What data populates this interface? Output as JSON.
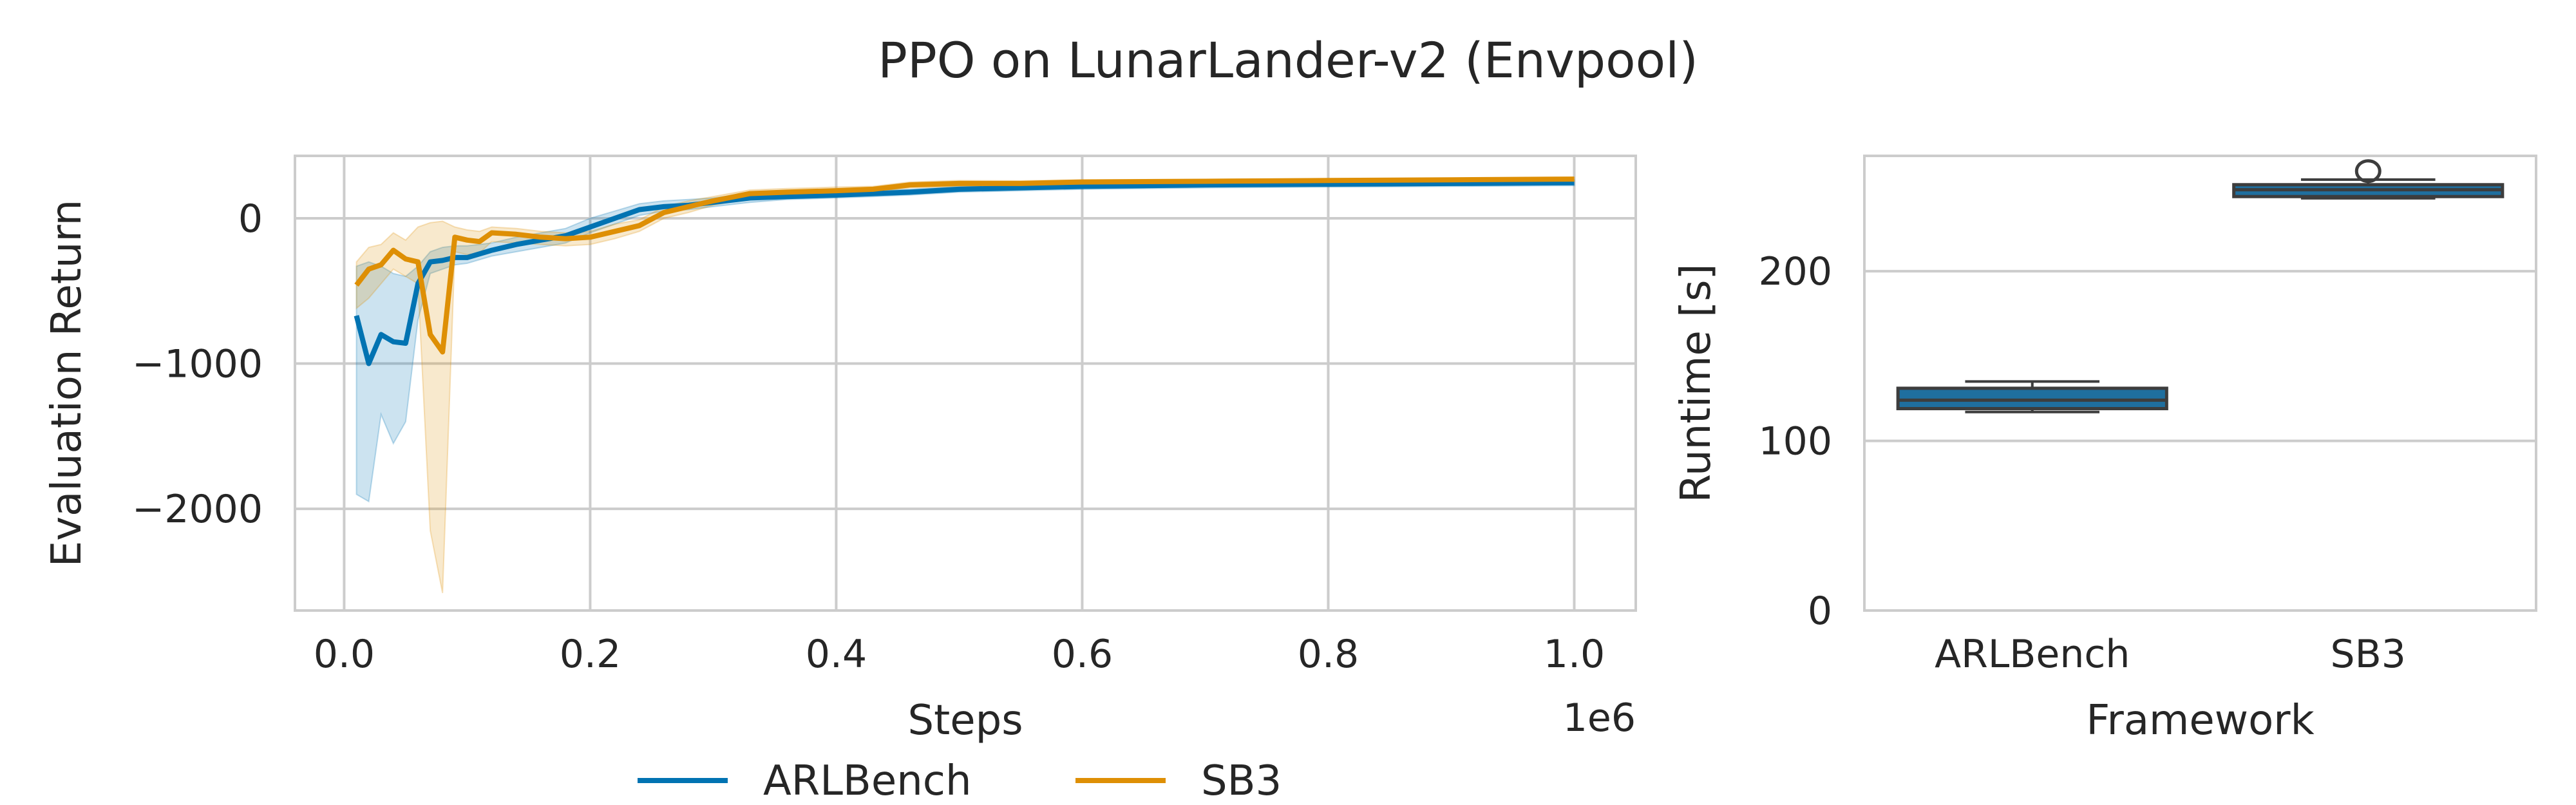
{
  "figure": {
    "title": "PPO on LunarLander-v2 (Envpool)"
  },
  "colors": {
    "arlbench": "#0173b2",
    "sb3": "#de8f05",
    "box_edge": "#3d3d3d",
    "grid": "#cccccc"
  },
  "chart_data": [
    {
      "type": "line",
      "xlabel": "Steps",
      "ylabel": "Evaluation Return",
      "x_offset_text": "1e6",
      "xlim": [
        -0.04,
        1.05
      ],
      "ylim": [
        -2700,
        430
      ],
      "xticks": [
        0.0,
        0.2,
        0.4,
        0.6,
        0.8,
        1.0
      ],
      "xtick_labels": [
        "0.0",
        "0.2",
        "0.4",
        "0.6",
        "0.8",
        "1.0"
      ],
      "yticks": [
        -2000,
        -1000,
        0
      ],
      "ytick_labels": [
        "−2000",
        "−1000",
        "0"
      ],
      "grid": true,
      "legend_position": "below",
      "series": [
        {
          "name": "ARLBench",
          "color": "#0173b2",
          "x": [
            0.01,
            0.02,
            0.03,
            0.04,
            0.05,
            0.06,
            0.07,
            0.08,
            0.09,
            0.1,
            0.12,
            0.14,
            0.16,
            0.18,
            0.2,
            0.22,
            0.24,
            0.26,
            0.28,
            0.3,
            0.33,
            0.36,
            0.4,
            0.43,
            0.46,
            0.5,
            0.55,
            0.6,
            0.7,
            0.8,
            0.9,
            1.0
          ],
          "y": [
            -670,
            -1000,
            -800,
            -850,
            -860,
            -450,
            -300,
            -290,
            -270,
            -270,
            -220,
            -180,
            -150,
            -120,
            -60,
            0,
            60,
            80,
            90,
            110,
            140,
            150,
            160,
            170,
            180,
            200,
            210,
            220,
            230,
            235,
            240,
            245
          ],
          "lower": [
            -1900,
            -1950,
            -1350,
            -1550,
            -1400,
            -700,
            -380,
            -350,
            -320,
            -310,
            -260,
            -230,
            -200,
            -170,
            -100,
            -40,
            20,
            50,
            60,
            80,
            110,
            130,
            140,
            150,
            160,
            180,
            190,
            200,
            210,
            215,
            220,
            225
          ],
          "upper": [
            -330,
            -300,
            -330,
            -380,
            -400,
            -330,
            -230,
            -200,
            -190,
            -190,
            -170,
            -130,
            -100,
            -70,
            0,
            50,
            100,
            120,
            130,
            140,
            170,
            180,
            190,
            195,
            200,
            220,
            230,
            240,
            250,
            255,
            260,
            265
          ]
        },
        {
          "name": "SB3",
          "color": "#de8f05",
          "x": [
            0.01,
            0.02,
            0.03,
            0.04,
            0.05,
            0.06,
            0.07,
            0.08,
            0.09,
            0.1,
            0.11,
            0.12,
            0.14,
            0.16,
            0.18,
            0.2,
            0.22,
            0.24,
            0.26,
            0.28,
            0.3,
            0.33,
            0.36,
            0.4,
            0.43,
            0.46,
            0.5,
            0.55,
            0.6,
            0.7,
            0.8,
            0.9,
            1.0
          ],
          "y": [
            -460,
            -350,
            -320,
            -220,
            -280,
            -300,
            -800,
            -920,
            -130,
            -150,
            -160,
            -100,
            -110,
            -130,
            -140,
            -130,
            -90,
            -50,
            40,
            80,
            120,
            170,
            180,
            190,
            200,
            230,
            240,
            240,
            250,
            255,
            260,
            265,
            270
          ],
          "lower": [
            -620,
            -550,
            -450,
            -350,
            -400,
            -450,
            -2150,
            -2580,
            -230,
            -250,
            -240,
            -160,
            -170,
            -180,
            -190,
            -180,
            -140,
            -90,
            0,
            40,
            90,
            140,
            150,
            170,
            180,
            210,
            220,
            225,
            235,
            240,
            245,
            250,
            255
          ],
          "upper": [
            -300,
            -200,
            -180,
            -100,
            -150,
            -60,
            -30,
            -20,
            -60,
            -80,
            -90,
            -60,
            -70,
            -90,
            -100,
            -90,
            -40,
            -10,
            80,
            120,
            150,
            195,
            205,
            215,
            220,
            250,
            260,
            258,
            265,
            268,
            272,
            275,
            280
          ]
        }
      ]
    },
    {
      "type": "box",
      "xlabel": "Framework",
      "ylabel": "Runtime [s]",
      "categories": [
        "ARLBench",
        "SB3"
      ],
      "ylim": [
        0,
        268
      ],
      "yticks": [
        0,
        100,
        200
      ],
      "ytick_labels": [
        "0",
        "100",
        "200"
      ],
      "grid": true,
      "boxes": [
        {
          "name": "ARLBench",
          "color": "#1f6f9f",
          "whisker_low": 117,
          "q1": 119,
          "median": 124,
          "q3": 131,
          "whisker_high": 135,
          "outliers": []
        },
        {
          "name": "SB3",
          "color": "#1f6f9f",
          "whisker_low": 243,
          "q1": 244,
          "median": 248,
          "q3": 251,
          "whisker_high": 254,
          "outliers": [
            259
          ]
        }
      ]
    }
  ]
}
